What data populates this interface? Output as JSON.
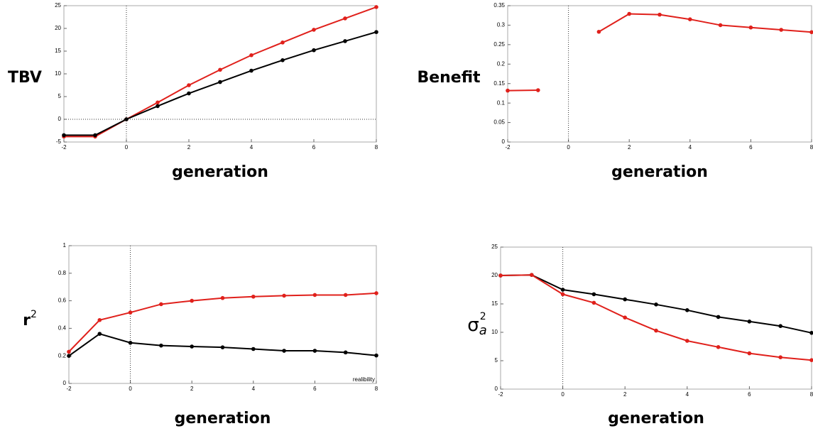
{
  "chart_data": [
    {
      "type": "line",
      "ylabel": "TBV",
      "xlabel": "generation",
      "x": [
        -2,
        -1,
        0,
        1,
        2,
        3,
        4,
        5,
        6,
        7,
        8
      ],
      "xlim": [
        -2,
        8
      ],
      "xticks": [
        -2,
        0,
        2,
        4,
        6,
        8
      ],
      "ylim": [
        -5,
        25
      ],
      "yticks": [
        -5,
        0,
        5,
        10,
        15,
        20,
        25
      ],
      "vline": 0,
      "hline": 0,
      "series": [
        {
          "color": "#e0201b",
          "values": [
            -3.8,
            -3.8,
            0,
            3.7,
            7.5,
            10.9,
            14.1,
            16.9,
            19.7,
            22.2,
            24.7
          ]
        },
        {
          "color": "#000000",
          "values": [
            -3.5,
            -3.5,
            0,
            2.9,
            5.7,
            8.2,
            10.7,
            13.0,
            15.2,
            17.2,
            19.2
          ]
        }
      ]
    },
    {
      "type": "line",
      "ylabel": "Benefit",
      "xlabel": "generation",
      "x": [
        -2,
        -1,
        0,
        1,
        2,
        3,
        4,
        5,
        6,
        7,
        8
      ],
      "xlim": [
        -2,
        8
      ],
      "xticks": [
        -2,
        0,
        2,
        4,
        6,
        8
      ],
      "ylim": [
        0,
        0.35
      ],
      "yticks": [
        0,
        0.05,
        0.1,
        0.15,
        0.2,
        0.25,
        0.3,
        0.35
      ],
      "vline": 0,
      "series": [
        {
          "color": "#e0201b",
          "values": [
            0.132,
            0.133,
            null,
            0.283,
            0.329,
            0.327,
            0.315,
            0.3,
            0.294,
            0.288,
            0.282
          ]
        }
      ]
    },
    {
      "type": "line",
      "ylabel": "r",
      "ylabel_sup": "2",
      "xlabel": "generation",
      "annotation": "realibility",
      "x": [
        -2,
        -1,
        0,
        1,
        2,
        3,
        4,
        5,
        6,
        7,
        8
      ],
      "xlim": [
        -2,
        8
      ],
      "xticks": [
        -2,
        0,
        2,
        4,
        6,
        8
      ],
      "ylim": [
        0,
        1
      ],
      "yticks": [
        0,
        0.2,
        0.4,
        0.6,
        0.8,
        1
      ],
      "vline": 0,
      "series": [
        {
          "color": "#e0201b",
          "values": [
            0.23,
            0.46,
            0.515,
            0.575,
            0.6,
            0.62,
            0.63,
            0.637,
            0.642,
            0.642,
            0.655
          ]
        },
        {
          "color": "#000000",
          "values": [
            0.2,
            0.36,
            0.295,
            0.275,
            0.268,
            0.262,
            0.25,
            0.237,
            0.237,
            0.225,
            0.203
          ]
        }
      ]
    },
    {
      "type": "line",
      "ylabel": "σ",
      "ylabel_sub": "a",
      "ylabel_sup": "2",
      "xlabel": "generation",
      "x": [
        -2,
        -1,
        0,
        1,
        2,
        3,
        4,
        5,
        6,
        7,
        8
      ],
      "xlim": [
        -2,
        8
      ],
      "xticks": [
        -2,
        0,
        2,
        4,
        6,
        8
      ],
      "ylim": [
        0,
        25
      ],
      "yticks": [
        0,
        5,
        10,
        15,
        20,
        25
      ],
      "vline": 0,
      "series": [
        {
          "color": "#000000",
          "values": [
            20,
            20.1,
            17.5,
            16.7,
            15.8,
            14.9,
            13.9,
            12.7,
            11.9,
            11.1,
            9.9
          ]
        },
        {
          "color": "#e0201b",
          "values": [
            20,
            20.1,
            16.7,
            15.2,
            12.6,
            10.3,
            8.5,
            7.4,
            6.3,
            5.6,
            5.1
          ]
        }
      ]
    }
  ]
}
